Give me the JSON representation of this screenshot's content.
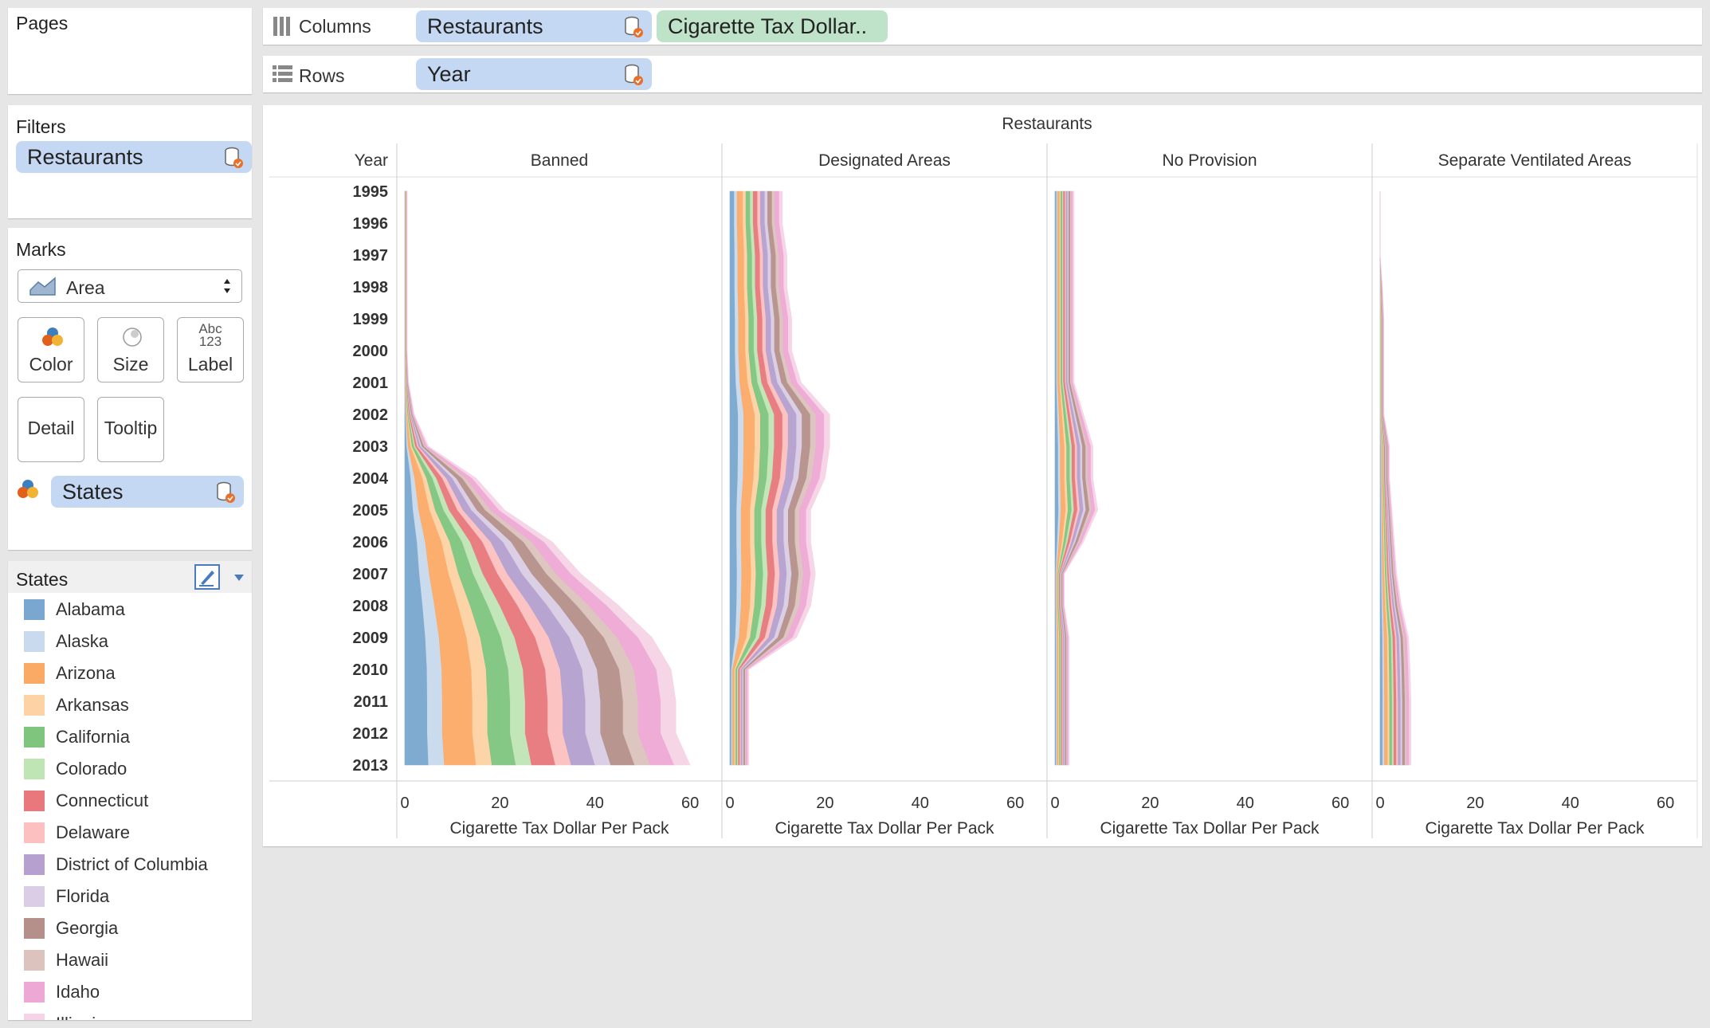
{
  "shelves": {
    "pages_title": "Pages",
    "columns_label": "Columns",
    "rows_label": "Rows",
    "columns_pills": [
      "Restaurants",
      "Cigarette Tax Dollar.."
    ],
    "rows_pills": [
      "Year"
    ]
  },
  "filters": {
    "title": "Filters",
    "pill": "Restaurants"
  },
  "marks": {
    "title": "Marks",
    "type": "Area",
    "buttons": {
      "color": "Color",
      "size": "Size",
      "label": "Label",
      "detail": "Detail",
      "tooltip": "Tooltip"
    },
    "label_icon": [
      "Abc",
      "123"
    ],
    "pill": "States"
  },
  "legend": {
    "title": "States",
    "items": [
      {
        "name": "Alabama",
        "color": "#7aa7cf"
      },
      {
        "name": "Alaska",
        "color": "#c9daee"
      },
      {
        "name": "Arizona",
        "color": "#fbaa66"
      },
      {
        "name": "Arkansas",
        "color": "#fdd2a4"
      },
      {
        "name": "California",
        "color": "#7fc57e"
      },
      {
        "name": "Colorado",
        "color": "#bfe5b5"
      },
      {
        "name": "Connecticut",
        "color": "#e8787c"
      },
      {
        "name": "Delaware",
        "color": "#fcc0c0"
      },
      {
        "name": "District of Columbia",
        "color": "#b5a0cf"
      },
      {
        "name": "Florida",
        "color": "#dacde5"
      },
      {
        "name": "Georgia",
        "color": "#b5908a"
      },
      {
        "name": "Hawaii",
        "color": "#dcc3bd"
      },
      {
        "name": "Idaho",
        "color": "#eea8d5"
      },
      {
        "name": "Illinois",
        "color": "#f6d3e6"
      }
    ]
  },
  "chart_data": {
    "type": "area",
    "title": "Restaurants",
    "row_header": "Year",
    "panels": [
      "Banned",
      "Designated Areas",
      "No Provision",
      "Separate Ventilated Areas"
    ],
    "xlabel": "Cigarette Tax Dollar Per Pack",
    "xlim": [
      0,
      63
    ],
    "xticks": [
      0,
      20,
      40,
      60
    ],
    "years": [
      "1995",
      "1996",
      "1997",
      "1998",
      "1999",
      "2000",
      "2001",
      "2002",
      "2003",
      "2004",
      "2005",
      "2006",
      "2007",
      "2008",
      "2009",
      "2010",
      "2011",
      "2012",
      "2013"
    ],
    "stack_totals": {
      "Banned": [
        0.5,
        0.5,
        0.5,
        0.5,
        0.5,
        0.5,
        0.8,
        2,
        5,
        15,
        21,
        31,
        37,
        45,
        52,
        56,
        57,
        57,
        60
      ],
      "Designated Areas": [
        11,
        11,
        12,
        12,
        13,
        13,
        15,
        21,
        21,
        20,
        17,
        17,
        18,
        17,
        14,
        4,
        4,
        4,
        4
      ],
      "No Provision": [
        4,
        4,
        4,
        4,
        4,
        4,
        4,
        6,
        8,
        8,
        9,
        6,
        2,
        2,
        3,
        3,
        3,
        3,
        3
      ],
      "Separate Ventilated Areas": [
        0,
        0,
        0,
        0.5,
        0.8,
        0.8,
        0.8,
        0.8,
        2,
        2,
        2.5,
        3,
        3.5,
        4.5,
        6,
        6.3,
        6.5,
        6.5,
        6.5
      ]
    }
  }
}
